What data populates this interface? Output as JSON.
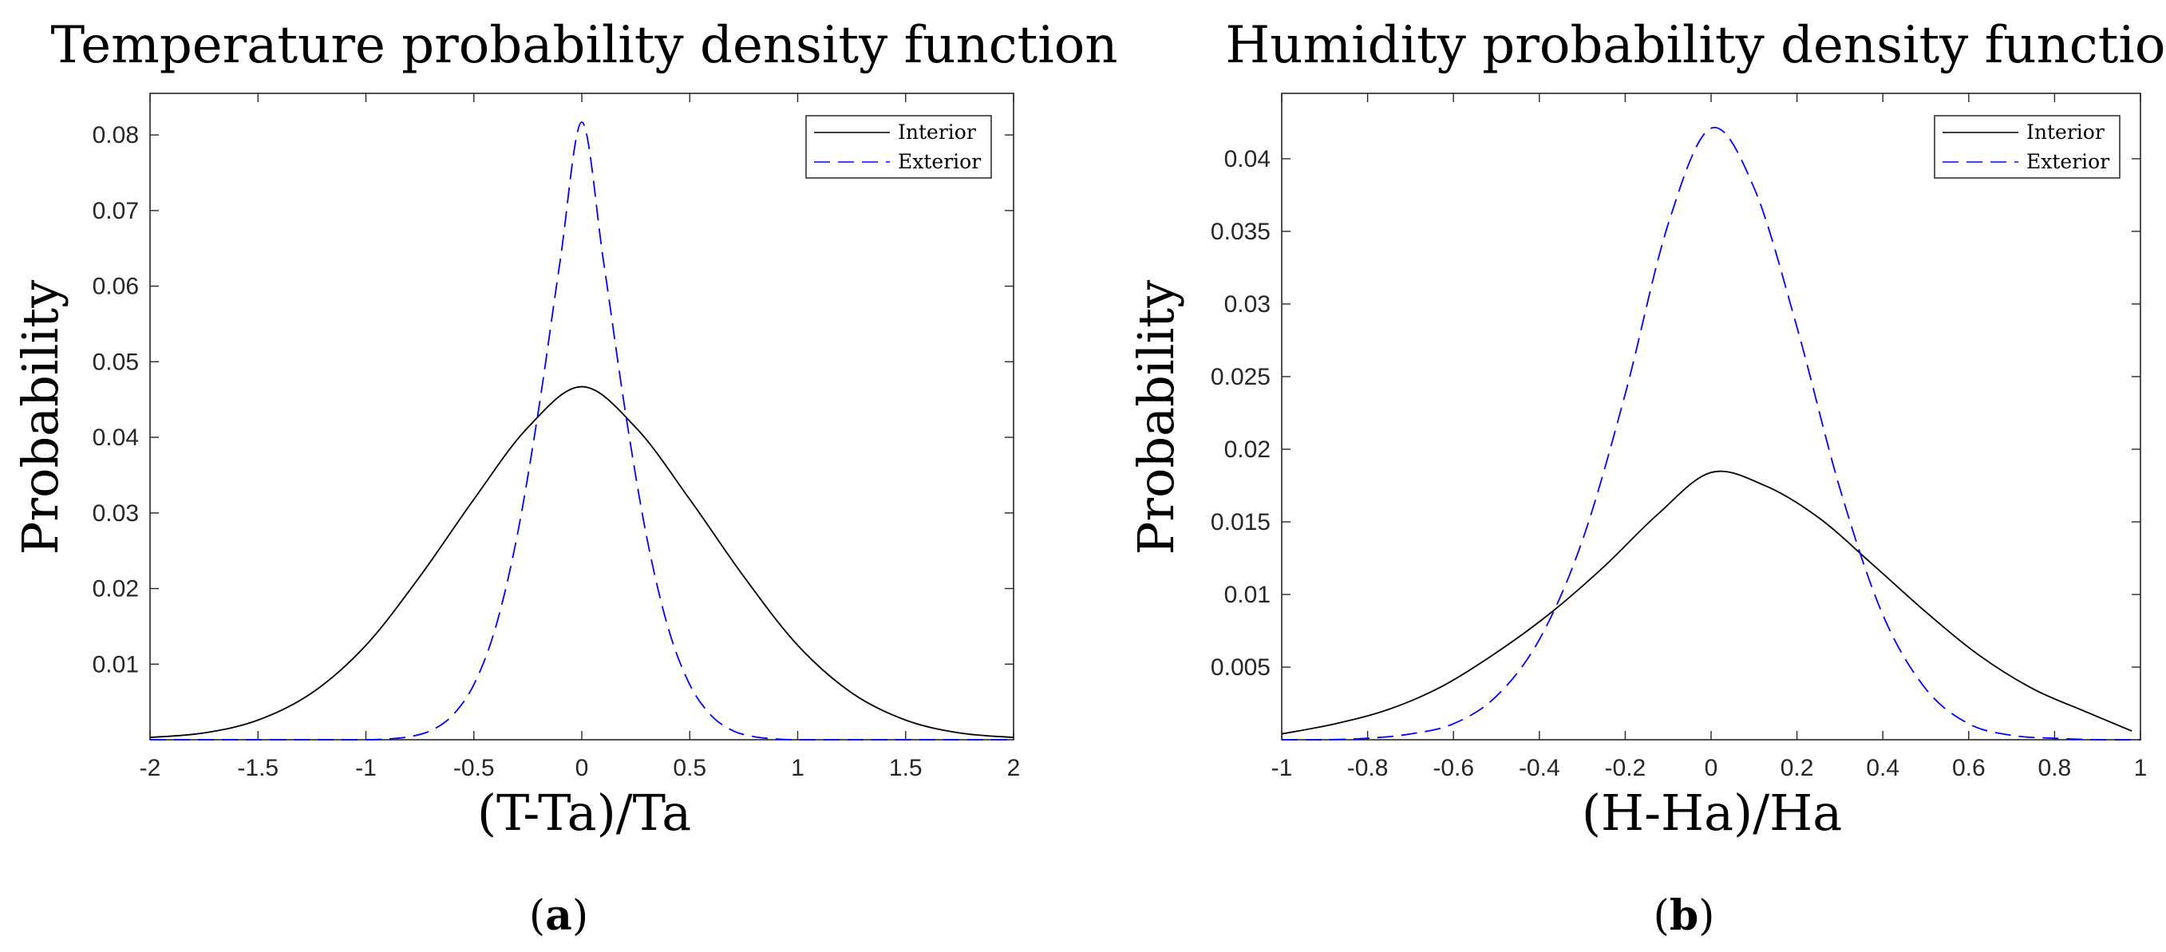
{
  "chart_data": [
    {
      "type": "line",
      "title": "Temperature probability density function",
      "xlabel": "(T-Ta)/Ta",
      "ylabel": "Probability",
      "caption_letter": "a",
      "xlim": [
        -2,
        2
      ],
      "ylim": [
        0,
        0.0855
      ],
      "xticks": [
        -2,
        -1.5,
        -1,
        -0.5,
        0,
        0.5,
        1,
        1.5,
        2
      ],
      "xtick_labels": [
        "-2",
        "-1.5",
        "-1",
        "-0.5",
        "0",
        "0.5",
        "1",
        "1.5",
        "2"
      ],
      "yticks": [
        0.01,
        0.02,
        0.03,
        0.04,
        0.05,
        0.06,
        0.07,
        0.08
      ],
      "ytick_labels": [
        "0.01",
        "0.02",
        "0.03",
        "0.04",
        "0.05",
        "0.06",
        "0.07",
        "0.08"
      ],
      "grid": false,
      "legend_position": "top-right",
      "series": [
        {
          "name": "Interior",
          "color": "#000000",
          "style": "solid",
          "x": [
            -2,
            -1.75,
            -1.5,
            -1.25,
            -1,
            -0.75,
            -0.5,
            -0.25,
            0,
            0.25,
            0.5,
            0.75,
            1,
            1.25,
            1.5,
            1.75,
            2
          ],
          "y": [
            0.0003,
            0.0009,
            0.0026,
            0.0062,
            0.0125,
            0.0216,
            0.0318,
            0.0413,
            0.0467,
            0.0413,
            0.0318,
            0.0216,
            0.0125,
            0.0062,
            0.0026,
            0.0009,
            0.0003
          ]
        },
        {
          "name": "Exterior",
          "color": "#0000ff",
          "style": "dashed",
          "x": [
            -2,
            -1.5,
            -1.25,
            -1,
            -0.9,
            -0.8,
            -0.7,
            -0.6,
            -0.5,
            -0.4,
            -0.3,
            -0.2,
            -0.1,
            0,
            0.1,
            0.2,
            0.3,
            0.4,
            0.5,
            0.6,
            0.7,
            0.8,
            0.9,
            1,
            1.25,
            1.5,
            2
          ],
          "y": [
            0,
            0,
            0,
            0,
            0.0001,
            0.0004,
            0.0012,
            0.0032,
            0.0073,
            0.0148,
            0.0269,
            0.0437,
            0.0634,
            0.0817,
            0.0634,
            0.0437,
            0.0269,
            0.0148,
            0.0073,
            0.0032,
            0.0012,
            0.0004,
            0.0001,
            0,
            0,
            0,
            0
          ]
        }
      ]
    },
    {
      "type": "line",
      "title": "Humidity probability density function",
      "xlabel": "(H-Ha)/Ha",
      "ylabel": "Probability",
      "caption_letter": "b",
      "xlim": [
        -1,
        1
      ],
      "ylim": [
        0,
        0.0445
      ],
      "xticks": [
        -1,
        -0.8,
        -0.6,
        -0.4,
        -0.2,
        0,
        0.2,
        0.4,
        0.6,
        0.8,
        1
      ],
      "xtick_labels": [
        "-1",
        "-0.8",
        "-0.6",
        "-0.4",
        "-0.2",
        "0",
        "0.2",
        "0.4",
        "0.6",
        "0.8",
        "1"
      ],
      "yticks": [
        0.005,
        0.01,
        0.015,
        0.02,
        0.025,
        0.03,
        0.035,
        0.04
      ],
      "ytick_labels": [
        "0.005",
        "0.01",
        "0.015",
        "0.02",
        "0.025",
        "0.03",
        "0.035",
        "0.04"
      ],
      "grid": false,
      "legend_position": "top-right",
      "series": [
        {
          "name": "Interior",
          "color": "#000000",
          "style": "solid",
          "x": [
            -1,
            -0.875,
            -0.75,
            -0.625,
            -0.5,
            -0.375,
            -0.25,
            -0.125,
            0,
            0.125,
            0.25,
            0.375,
            0.5,
            0.625,
            0.75,
            0.875,
            0.98
          ],
          "y": [
            0.0004,
            0.0011,
            0.0021,
            0.0037,
            0.006,
            0.0087,
            0.0119,
            0.0155,
            0.0184,
            0.0175,
            0.0153,
            0.0121,
            0.0088,
            0.0058,
            0.0035,
            0.0019,
            0.0006
          ]
        },
        {
          "name": "Exterior",
          "color": "#0000ff",
          "style": "dashed",
          "x": [
            -1,
            -0.9,
            -0.8,
            -0.7,
            -0.6,
            -0.5,
            -0.4,
            -0.3,
            -0.2,
            -0.1,
            0,
            0.1,
            0.2,
            0.3,
            0.4,
            0.5,
            0.6,
            0.7,
            0.8,
            0.9,
            1
          ],
          "y": [
            0,
            0.0,
            0.0001,
            0.0004,
            0.0011,
            0.003,
            0.0069,
            0.0137,
            0.0238,
            0.0355,
            0.0421,
            0.038,
            0.0284,
            0.0173,
            0.0086,
            0.0035,
            0.0011,
            0.0003,
            0.0001,
            0,
            0
          ]
        }
      ]
    }
  ]
}
